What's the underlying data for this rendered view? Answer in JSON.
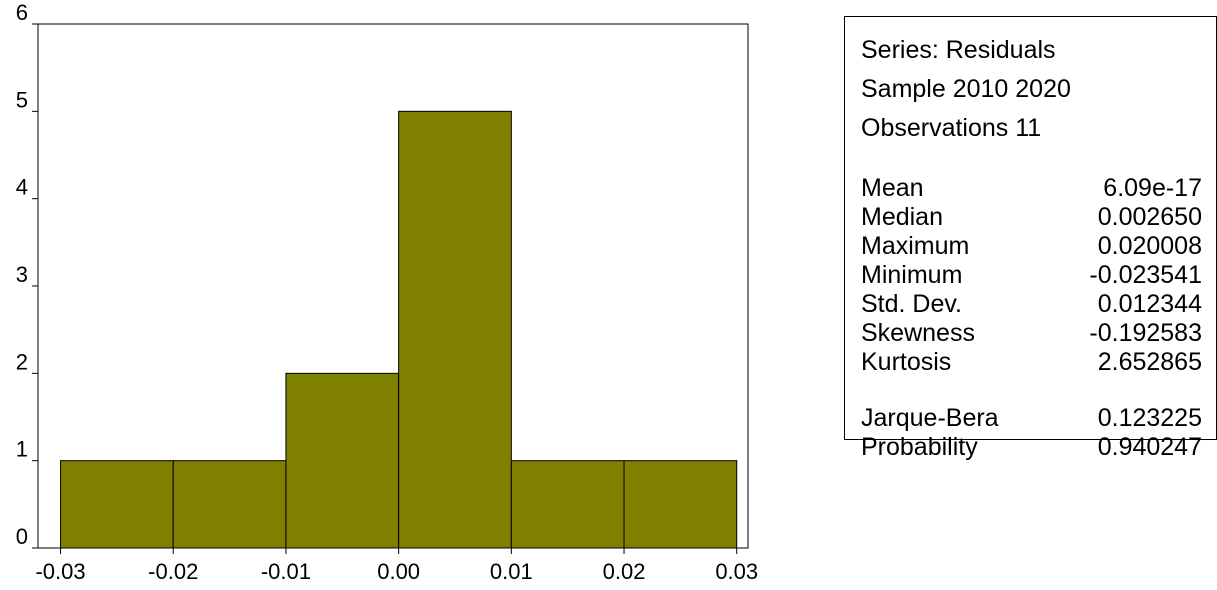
{
  "colors": {
    "bar_fill": "#808000",
    "bar_stroke": "#000000",
    "axis": "#000000"
  },
  "chart_data": {
    "type": "bar",
    "title": "",
    "xlabel": "",
    "ylabel": "",
    "bins": [
      {
        "from": -0.03,
        "to": -0.02,
        "count": 1
      },
      {
        "from": -0.02,
        "to": -0.01,
        "count": 1
      },
      {
        "from": -0.01,
        "to": 0.0,
        "count": 2
      },
      {
        "from": 0.0,
        "to": 0.01,
        "count": 5
      },
      {
        "from": 0.01,
        "to": 0.02,
        "count": 1
      },
      {
        "from": 0.02,
        "to": 0.03,
        "count": 1
      }
    ],
    "xlim": [
      -0.032,
      0.031
    ],
    "ylim": [
      0,
      6
    ],
    "x_ticks": [
      {
        "value": -0.03,
        "label": "-0.03"
      },
      {
        "value": -0.02,
        "label": "-0.02"
      },
      {
        "value": -0.01,
        "label": "-0.01"
      },
      {
        "value": 0.0,
        "label": "0.00"
      },
      {
        "value": 0.01,
        "label": "0.01"
      },
      {
        "value": 0.02,
        "label": "0.02"
      },
      {
        "value": 0.03,
        "label": "0.03"
      }
    ],
    "y_ticks": [
      {
        "value": 0,
        "label": "0"
      },
      {
        "value": 1,
        "label": "1"
      },
      {
        "value": 2,
        "label": "2"
      },
      {
        "value": 3,
        "label": "3"
      },
      {
        "value": 4,
        "label": "4"
      },
      {
        "value": 5,
        "label": "5"
      },
      {
        "value": 6,
        "label": "6"
      }
    ],
    "grid": false,
    "legend": "none"
  },
  "stats": {
    "series_line": "Series: Residuals",
    "sample_line": "Sample 2010 2020",
    "observations_line": "Observations 11",
    "rows": [
      {
        "label": "Mean",
        "value": "6.09e-17"
      },
      {
        "label": "Median",
        "value": "0.002650"
      },
      {
        "label": "Maximum",
        "value": "0.020008"
      },
      {
        "label": "Minimum",
        "value": "-0.023541"
      },
      {
        "label": "Std. Dev.",
        "value": "0.012344"
      },
      {
        "label": "Skewness",
        "value": "-0.192583"
      },
      {
        "label": "Kurtosis",
        "value": "2.652865"
      }
    ],
    "test_rows": [
      {
        "label": "Jarque-Bera",
        "value": "0.123225"
      },
      {
        "label": "Probability",
        "value": "0.940247"
      }
    ]
  }
}
